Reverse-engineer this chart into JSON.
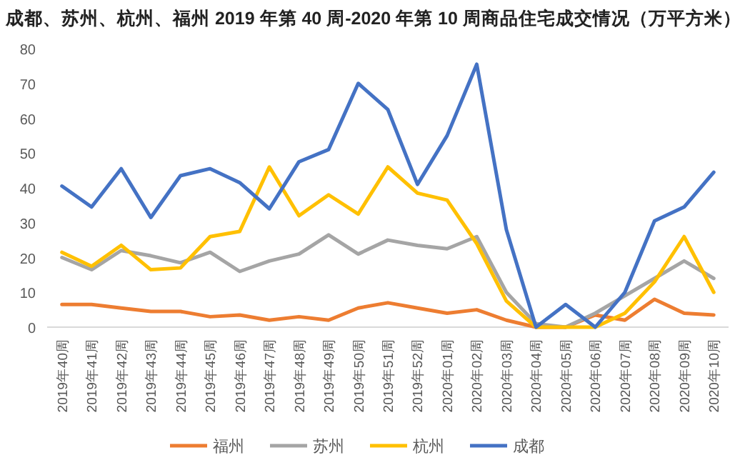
{
  "chart_data": {
    "type": "line",
    "title": "成都、苏州、杭州、福州 2019 年第 40 周-2020 年第 10 周商品住宅成交情况（万平方米）",
    "categories": [
      "2019年40周",
      "2019年41周",
      "2019年42周",
      "2019年43周",
      "2019年44周",
      "2019年45周",
      "2019年46周",
      "2019年47周",
      "2019年48周",
      "2019年49周",
      "2019年50周",
      "2019年51周",
      "2019年52周",
      "2020年01周",
      "2020年02周",
      "2020年03周",
      "2020年04周",
      "2020年05周",
      "2020年06周",
      "2020年07周",
      "2020年08周",
      "2020年09周",
      "2020年10周"
    ],
    "series": [
      {
        "name": "福州",
        "color": "#ed7d31",
        "values": [
          6.5,
          6.5,
          5.5,
          4.5,
          4.5,
          3,
          3.5,
          2,
          3,
          2,
          5.5,
          7,
          5.5,
          4,
          5,
          2,
          0,
          0,
          3.5,
          2,
          8,
          4,
          3.5
        ]
      },
      {
        "name": "苏州",
        "color": "#a5a5a5",
        "values": [
          20,
          16.5,
          22,
          20.5,
          18.5,
          21.5,
          16,
          19,
          21,
          26.5,
          21,
          25,
          23.5,
          22.5,
          26,
          10,
          1,
          0,
          4,
          9,
          14,
          19,
          14
        ]
      },
      {
        "name": "杭州",
        "color": "#ffc000",
        "values": [
          21.5,
          17.5,
          23.5,
          16.5,
          17,
          26,
          27.5,
          46,
          32,
          38,
          32.5,
          46,
          38.5,
          36.5,
          24,
          7.5,
          0,
          0,
          0,
          4,
          13,
          26,
          10
        ]
      },
      {
        "name": "成都",
        "color": "#4472c4",
        "values": [
          40.5,
          34.5,
          45.5,
          31.5,
          43.5,
          45.5,
          41.5,
          34,
          47.5,
          51,
          70,
          62.5,
          41,
          55,
          75.5,
          28,
          0,
          6.5,
          0,
          10,
          30.5,
          34.5,
          44.5
        ]
      }
    ],
    "ylim": [
      0,
      80
    ],
    "yticks": [
      0,
      10,
      20,
      30,
      40,
      50,
      60,
      70,
      80
    ],
    "grid": false,
    "legend": "bottom",
    "marker": "none",
    "line_style": "solid"
  }
}
